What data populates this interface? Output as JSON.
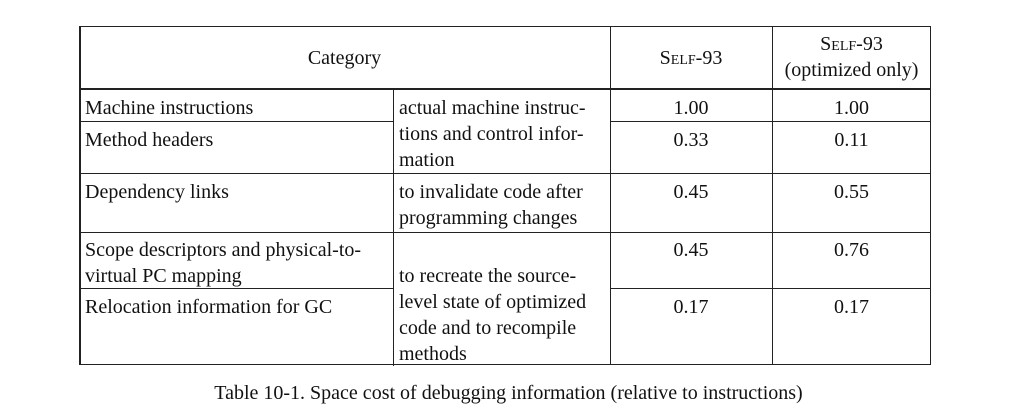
{
  "table": {
    "header": {
      "category": "Category",
      "col1": "Self-93",
      "col2_line1": "Self-93",
      "col2_line2": "(optimized only)"
    },
    "rows": [
      {
        "label_lines": [
          "Machine instructions"
        ],
        "v1": "1.00",
        "v2": "1.00"
      },
      {
        "label_lines": [
          "Method headers"
        ],
        "v1": "0.33",
        "v2": "0.11"
      },
      {
        "label_lines": [
          "Dependency links"
        ],
        "v1": "0.45",
        "v2": "0.55"
      },
      {
        "label_lines": [
          "Scope descriptors and physical-to-",
          "virtual PC mapping"
        ],
        "v1": "0.45",
        "v2": "0.76"
      },
      {
        "label_lines": [
          "Relocation information for GC"
        ],
        "v1": "0.17",
        "v2": "0.17"
      }
    ],
    "descriptions": [
      {
        "lines": [
          "actual machine instruc-",
          "tions and control infor-",
          "mation"
        ]
      },
      {
        "lines": [
          "to invalidate code after",
          "programming changes"
        ]
      },
      {
        "lines": [
          "to recreate the source-",
          "level state of optimized",
          "code and to recompile",
          "methods"
        ]
      }
    ]
  },
  "caption": "Table 10-1.  Space cost of debugging information (relative to instructions)"
}
